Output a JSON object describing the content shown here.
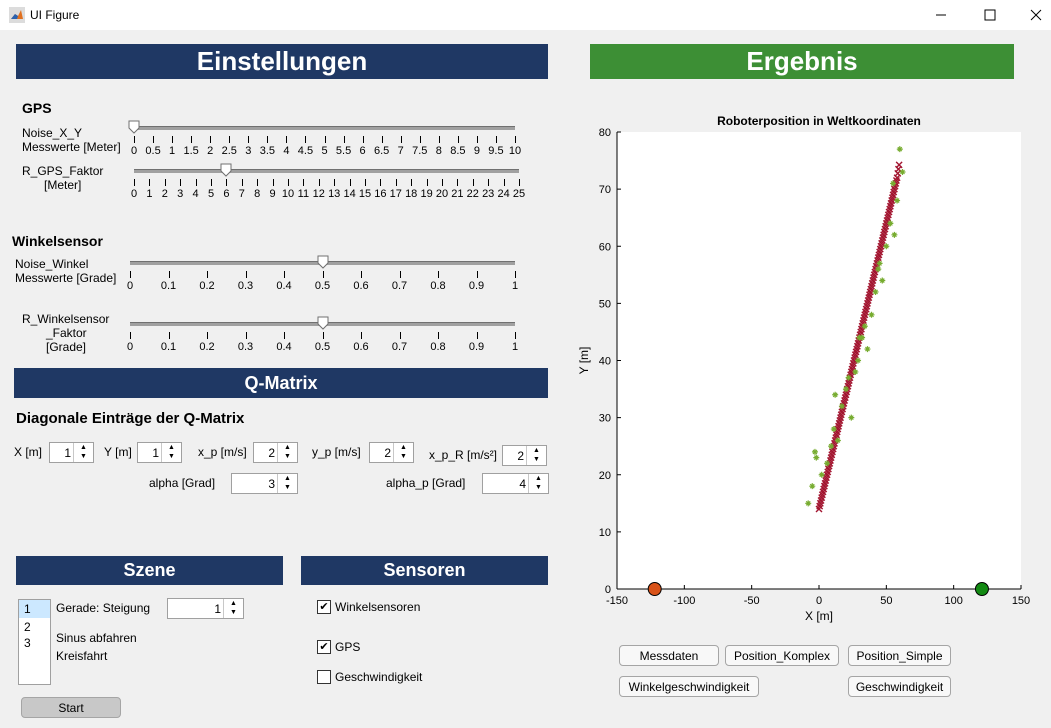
{
  "window": {
    "title": "UI Figure"
  },
  "settings": {
    "title": "Einstellungen",
    "gps": {
      "heading": "GPS",
      "noise_label_1": "Noise_X_Y",
      "noise_label_2": "Messwerte [Meter]",
      "noise_value": 0,
      "noise_ticks": [
        "0",
        "0.5",
        "1",
        "1.5",
        "2",
        "2.5",
        "3",
        "3.5",
        "4",
        "4.5",
        "5",
        "5.5",
        "6",
        "6.5",
        "7",
        "7.5",
        "8",
        "8.5",
        "9",
        "9.5",
        "10"
      ],
      "r_label_1": "R_GPS_Faktor",
      "r_label_2": "[Meter]",
      "r_value": 6,
      "r_ticks": [
        "0",
        "1",
        "2",
        "3",
        "4",
        "5",
        "6",
        "7",
        "8",
        "9",
        "10",
        "11",
        "12",
        "13",
        "14",
        "15",
        "16",
        "17",
        "18",
        "19",
        "20",
        "21",
        "22",
        "23",
        "24",
        "25"
      ]
    },
    "angle": {
      "heading": "Winkelsensor",
      "noise_label_1": "Noise_Winkel",
      "noise_label_2": "Messwerte [Grade]",
      "noise_value": 0.5,
      "r_label_1": "R_Winkelsensor",
      "r_label_2": "_Faktor",
      "r_label_3": "[Grade]",
      "r_value": 0.5,
      "ticks": [
        "0",
        "0.1",
        "0.2",
        "0.3",
        "0.4",
        "0.5",
        "0.6",
        "0.7",
        "0.8",
        "0.9",
        "1"
      ]
    },
    "qmatrix": {
      "title": "Q-Matrix",
      "subtitle": "Diagonale Einträge der Q-Matrix",
      "x_label": "X [m]",
      "x_value": "1",
      "y_label": "Y [m]",
      "y_value": "1",
      "xp_label": "x_p [m/s]",
      "xp_value": "2",
      "yp_label": "y_p [m/s]",
      "yp_value": "2",
      "xpr_label": "x_p_R [m/s²]",
      "xpr_value": "2",
      "alpha_label": "alpha [Grad]",
      "alpha_value": "3",
      "alphap_label": "alpha_p [Grad]",
      "alphap_value": "4"
    },
    "scene": {
      "title": "Szene",
      "list": [
        "1",
        "2",
        "3"
      ],
      "selected": "1",
      "line_label": "Gerade: Steigung",
      "slope_value": "1",
      "sine_label": "Sinus abfahren",
      "circle_label": "Kreisfahrt",
      "start_label": "Start"
    },
    "sensors": {
      "title": "Sensoren",
      "angle_sensors": "Winkelsensoren",
      "gps": "GPS",
      "speed": "Geschwindigkeit",
      "check_mark": "✔"
    }
  },
  "result": {
    "title": "Ergebnis",
    "buttons": {
      "measurements": "Messdaten",
      "pos_complex": "Position_Komplex",
      "pos_simple": "Position_Simple",
      "angular_speed": "Winkelgeschwindigkeit",
      "speed": "Geschwindigkeit"
    }
  },
  "chart_data": {
    "type": "scatter",
    "title": "Roboterposition in Weltkoordinaten",
    "xlabel": "X [m]",
    "ylabel": "Y [m]",
    "xlim": [
      -150,
      150
    ],
    "ylim": [
      0,
      80
    ],
    "xticks": [
      -150,
      -100,
      -50,
      0,
      50,
      100,
      150
    ],
    "yticks": [
      0,
      10,
      20,
      30,
      40,
      50,
      60,
      70,
      80
    ],
    "colors": {
      "estimate": "#a2142f",
      "gps": "#77ac30",
      "start_marker": "#d95319",
      "end_marker": "#138a13"
    },
    "series": [
      {
        "values_x": [
          0,
          2,
          4,
          6,
          8,
          10,
          12,
          14,
          16,
          18,
          20,
          22,
          24,
          26,
          28,
          30,
          32,
          34,
          36,
          38,
          40,
          42,
          44,
          46,
          48,
          50,
          52,
          54,
          56,
          58,
          60
        ],
        "values_y": [
          14,
          16,
          18,
          20,
          22,
          24,
          26,
          28,
          30,
          32,
          34,
          36,
          38,
          40,
          42,
          44,
          46,
          48,
          50,
          52,
          54,
          56,
          58,
          60,
          62,
          64,
          66,
          68,
          70,
          72,
          75
        ]
      },
      {
        "values_x": [
          -8,
          -5,
          -2,
          2,
          6,
          9,
          11,
          14,
          17,
          20,
          24,
          27,
          29,
          32,
          34,
          36,
          39,
          42,
          44,
          47,
          50,
          53,
          56,
          58,
          62,
          -3,
          12,
          22,
          30,
          45,
          55,
          60
        ],
        "values_y": [
          15,
          18,
          23,
          20,
          22,
          25,
          28,
          26,
          32,
          35,
          30,
          38,
          40,
          44,
          46,
          42,
          48,
          52,
          56,
          54,
          60,
          64,
          62,
          68,
          73,
          24,
          34,
          37,
          44,
          57,
          71,
          77
        ]
      },
      {
        "values_x": [
          -122
        ],
        "values_y": [
          0
        ]
      },
      {
        "values_x": [
          121
        ],
        "values_y": [
          0
        ]
      }
    ]
  }
}
